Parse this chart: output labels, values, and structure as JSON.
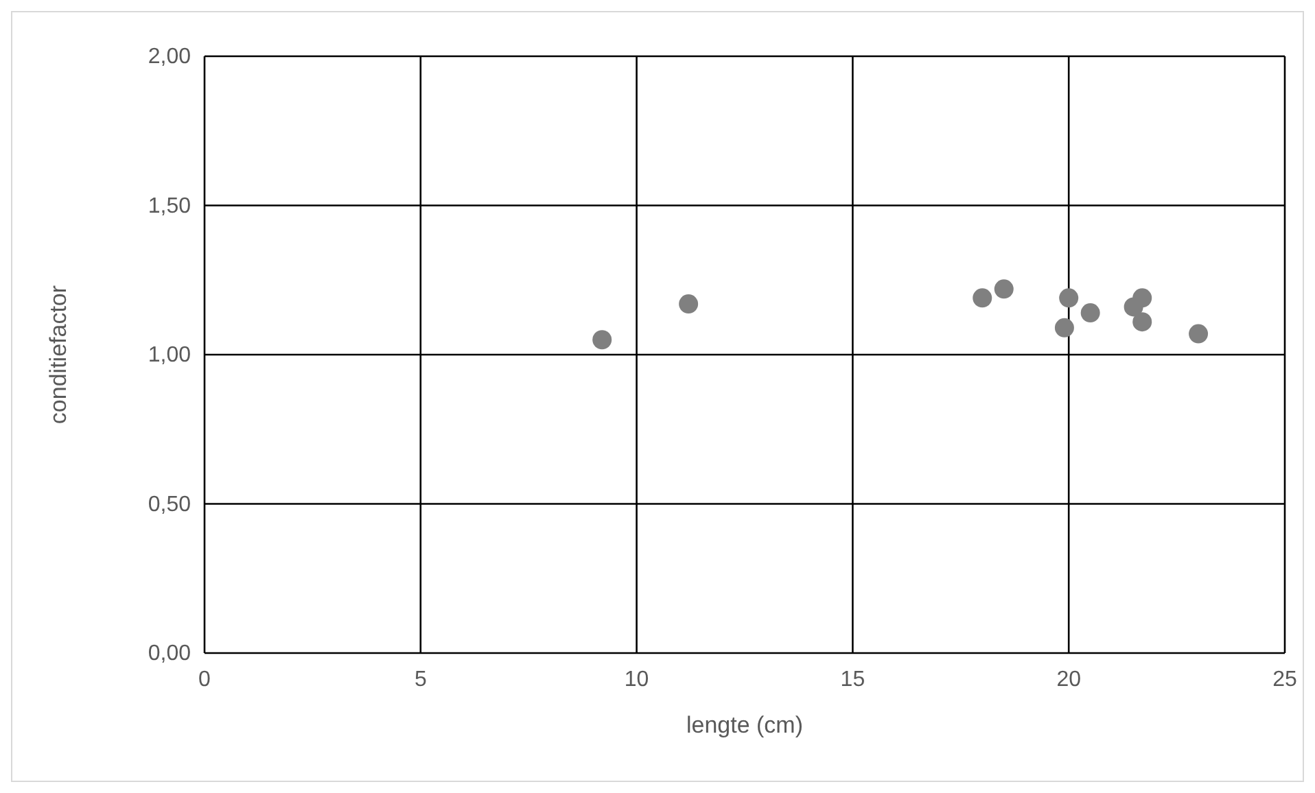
{
  "chart_data": {
    "type": "scatter",
    "xlabel": "lengte (cm)",
    "ylabel": "conditiefactor",
    "xlim": [
      0,
      25
    ],
    "xticks": [
      0,
      5,
      10,
      15,
      20,
      25
    ],
    "ylim": [
      0,
      2
    ],
    "yticks": [
      {
        "value": 0,
        "label": "0,00"
      },
      {
        "value": 0.5,
        "label": "0,50"
      },
      {
        "value": 1,
        "label": "1,00"
      },
      {
        "value": 1.5,
        "label": "1,50"
      },
      {
        "value": 2,
        "label": "2,00"
      }
    ],
    "grid": true,
    "marker": "circle",
    "series": [
      {
        "color": "#808080",
        "x": [
          9.2,
          11.2,
          18.0,
          18.5,
          20.0,
          19.9,
          20.5,
          21.5,
          21.7,
          21.7,
          23.0
        ],
        "values": [
          1.05,
          1.17,
          1.19,
          1.22,
          1.19,
          1.09,
          1.14,
          1.16,
          1.19,
          1.11,
          1.07
        ]
      }
    ]
  }
}
